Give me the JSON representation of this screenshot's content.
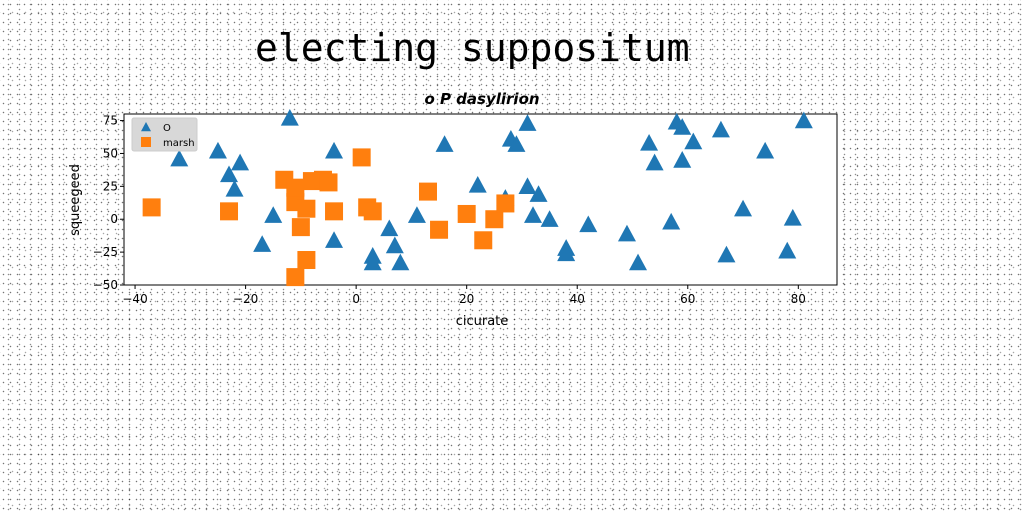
{
  "page": {
    "title": "electing suppositum"
  },
  "chart_data": {
    "type": "scatter",
    "title": "o P dasylirion",
    "xlabel": "cicurate",
    "ylabel": "squeegeed",
    "xlim": [
      -42,
      87
    ],
    "ylim": [
      -50,
      80
    ],
    "xticks": [
      -40,
      -20,
      0,
      20,
      40,
      60,
      80
    ],
    "yticks": [
      -50,
      -25,
      0,
      25,
      50,
      75
    ],
    "grid": false,
    "legend_position": "top-left",
    "series": [
      {
        "name": "O",
        "marker": "triangle",
        "color": "#1f77b4",
        "points": [
          [
            -12,
            77
          ],
          [
            -32,
            46
          ],
          [
            -25,
            52
          ],
          [
            -21,
            43
          ],
          [
            -23,
            34
          ],
          [
            -22,
            23
          ],
          [
            -15,
            3
          ],
          [
            -17,
            -19
          ],
          [
            -4,
            52
          ],
          [
            -4,
            -16
          ],
          [
            3,
            -28
          ],
          [
            3,
            -33
          ],
          [
            6,
            -7
          ],
          [
            7,
            -20
          ],
          [
            8,
            -33
          ],
          [
            11,
            3
          ],
          [
            16,
            57
          ],
          [
            22,
            26
          ],
          [
            27,
            16
          ],
          [
            28,
            61
          ],
          [
            29,
            57
          ],
          [
            31,
            73
          ],
          [
            31,
            25
          ],
          [
            32,
            3
          ],
          [
            33,
            19
          ],
          [
            35,
            0
          ],
          [
            38,
            -22
          ],
          [
            38,
            -26
          ],
          [
            42,
            -4
          ],
          [
            49,
            -11
          ],
          [
            51,
            -33
          ],
          [
            53,
            58
          ],
          [
            54,
            43
          ],
          [
            57,
            -2
          ],
          [
            58,
            74
          ],
          [
            59,
            70
          ],
          [
            59,
            45
          ],
          [
            61,
            59
          ],
          [
            66,
            68
          ],
          [
            67,
            -27
          ],
          [
            70,
            8
          ],
          [
            74,
            52
          ],
          [
            78,
            -24
          ],
          [
            79,
            1
          ],
          [
            81,
            75
          ]
        ]
      },
      {
        "name": "marsh",
        "marker": "square",
        "color": "#ff7f0e",
        "points": [
          [
            -37,
            9
          ],
          [
            -23,
            6
          ],
          [
            -13,
            30
          ],
          [
            -11,
            13
          ],
          [
            -11,
            24
          ],
          [
            -10,
            -6
          ],
          [
            -9,
            8
          ],
          [
            -8,
            29
          ],
          [
            -6,
            30
          ],
          [
            -5,
            28
          ],
          [
            -4,
            6
          ],
          [
            1,
            47
          ],
          [
            2,
            9
          ],
          [
            3,
            6
          ],
          [
            -9,
            -31
          ],
          [
            -11,
            -44
          ],
          [
            13,
            21
          ],
          [
            15,
            -8
          ],
          [
            20,
            4
          ],
          [
            23,
            -16
          ],
          [
            25,
            0
          ],
          [
            27,
            12
          ]
        ]
      }
    ]
  }
}
